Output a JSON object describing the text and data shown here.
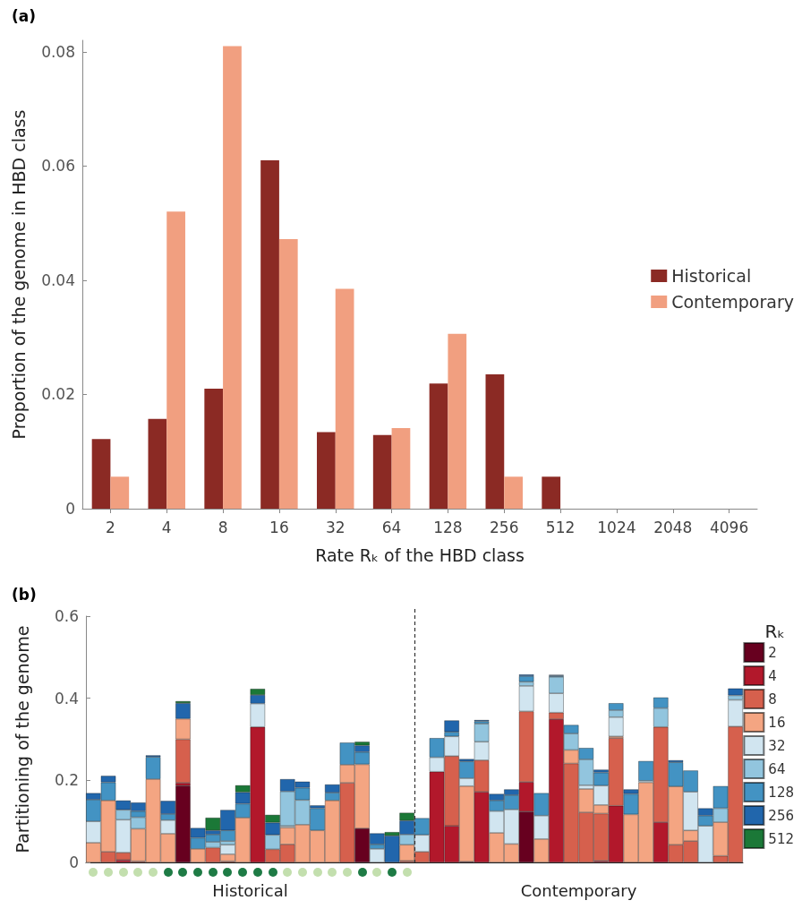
{
  "chart_data": [
    {
      "type": "bar",
      "title": "(a)",
      "xlabel": "Rate Rₖ of the HBD class",
      "ylabel": "Proportion of the genome in HBD class",
      "categories": [
        "2",
        "4",
        "8",
        "16",
        "32",
        "64",
        "128",
        "256",
        "512",
        "1024",
        "2048",
        "4096"
      ],
      "series": [
        {
          "name": "Historical",
          "color": "#8b2a24",
          "values": [
            0.0122,
            0.0157,
            0.021,
            0.061,
            0.0134,
            0.0129,
            0.0219,
            0.0235,
            0.0056,
            0,
            0,
            0
          ]
        },
        {
          "name": "Contemporary",
          "color": "#f19f80",
          "values": [
            0.0056,
            0.052,
            0.081,
            0.0472,
            0.0385,
            0.0141,
            0.0306,
            0.0056,
            0,
            0,
            0,
            0
          ]
        }
      ],
      "ylim": [
        0,
        0.082
      ],
      "yticks": [
        0,
        0.02,
        0.04,
        0.06,
        0.08
      ],
      "grid": false,
      "legend": "right"
    },
    {
      "type": "bar",
      "title": "(b)",
      "ylabel": "Partitioning of the genome",
      "legend_title": "Rₖ",
      "stacked": true,
      "tick_labels": "y",
      "annotations": [
        "Historical",
        "Contemporary"
      ],
      "categories": [
        null,
        null,
        null,
        null,
        null,
        null,
        null,
        null,
        null,
        null,
        null,
        null,
        null,
        null,
        null,
        null,
        null,
        null,
        null,
        null,
        null,
        null,
        null,
        null,
        null,
        null,
        null,
        null,
        null,
        null,
        null,
        null,
        null,
        null,
        null,
        null,
        null,
        null,
        null,
        null,
        null,
        null,
        null,
        null
      ],
      "ylim": [
        0,
        0.6
      ],
      "yticks": [
        0,
        0.2,
        0.4,
        0.6
      ],
      "grid": false,
      "legend": "right",
      "series": [
        {
          "name": "2",
          "color": "#67001f",
          "values": [
            0,
            0,
            0,
            0,
            0,
            0,
            0.187,
            0,
            0,
            0,
            0,
            0,
            0,
            0,
            0,
            0,
            0,
            0,
            0.083,
            0,
            0,
            0,
            0,
            0,
            0,
            0,
            0,
            0,
            0,
            0.124,
            0,
            0,
            0,
            0,
            0,
            0,
            0,
            0,
            0,
            0,
            0,
            0,
            0,
            0
          ]
        },
        {
          "name": "4",
          "color": "#b2182b",
          "values": [
            0,
            0,
            0.006,
            0,
            0,
            0,
            0.007,
            0,
            0,
            0,
            0,
            0.33,
            0,
            0,
            0,
            0,
            0,
            0,
            0,
            0,
            0,
            0,
            0,
            0.221,
            0.089,
            0.002,
            0.172,
            0,
            0,
            0.072,
            0,
            0.349,
            0,
            0,
            0.004,
            0.138,
            0,
            0,
            0.098,
            0,
            0,
            0,
            0,
            0
          ]
        },
        {
          "name": "8",
          "color": "#d6604d",
          "values": [
            0,
            0.026,
            0.018,
            0.003,
            0,
            0,
            0.106,
            0,
            0.036,
            0.003,
            0,
            0,
            0.032,
            0.044,
            0,
            0,
            0,
            0.194,
            0,
            0,
            0,
            0.004,
            0.026,
            0,
            0.17,
            0,
            0.077,
            0,
            0,
            0.172,
            0,
            0.016,
            0.241,
            0.122,
            0.115,
            0.165,
            0,
            0,
            0.232,
            0.043,
            0.052,
            0,
            0.016,
            0.331
          ]
        },
        {
          "name": "16",
          "color": "#f4a582",
          "values": [
            0.048,
            0.125,
            0,
            0.079,
            0.203,
            0.07,
            0.05,
            0.033,
            0,
            0.017,
            0.109,
            0,
            0,
            0.041,
            0.092,
            0.078,
            0.151,
            0.044,
            0.156,
            0,
            0,
            0.039,
            0,
            0,
            0,
            0.184,
            0,
            0.072,
            0.045,
            0,
            0.057,
            0,
            0.033,
            0.057,
            0.021,
            0.004,
            0.117,
            0.195,
            0,
            0.142,
            0.026,
            0,
            0.082,
            0
          ]
        },
        {
          "name": "32",
          "color": "#d1e5f0",
          "values": [
            0.052,
            0,
            0.08,
            0,
            0,
            0.033,
            0,
            0,
            0,
            0.023,
            0,
            0.057,
            0,
            0.004,
            0,
            0,
            0,
            0,
            0,
            0.033,
            0,
            0,
            0.041,
            0.035,
            0.048,
            0.019,
            0.045,
            0.053,
            0.084,
            0.062,
            0.057,
            0.047,
            0,
            0.009,
            0.047,
            0.047,
            0,
            0.004,
            0,
            0,
            0.094,
            0.089,
            0,
            0.065
          ]
        },
        {
          "name": "64",
          "color": "#92c5de",
          "values": [
            0,
            0,
            0.024,
            0.028,
            0,
            0,
            0,
            0,
            0.014,
            0.009,
            0,
            0,
            0.035,
            0.084,
            0.06,
            0,
            0,
            0,
            0,
            0,
            0,
            0.025,
            0,
            0,
            0,
            0,
            0.044,
            0,
            0,
            0.01,
            0,
            0.04,
            0.04,
            0.063,
            0,
            0.017,
            0,
            0,
            0.046,
            0,
            0,
            0,
            0.034,
            0.011
          ]
        },
        {
          "name": "128",
          "color": "#4393c3",
          "values": [
            0.053,
            0.044,
            0,
            0.015,
            0.054,
            0.015,
            0,
            0.027,
            0.018,
            0.026,
            0.034,
            0,
            0,
            0,
            0.03,
            0.054,
            0.019,
            0.054,
            0.03,
            0.011,
            0,
            0,
            0.041,
            0.047,
            0.011,
            0.041,
            0.006,
            0.026,
            0.035,
            0.014,
            0.055,
            0.003,
            0.021,
            0.028,
            0.032,
            0.017,
            0.05,
            0.048,
            0.026,
            0.059,
            0.052,
            0.025,
            0.054,
            0
          ]
        },
        {
          "name": "256",
          "color": "#2166ac",
          "values": [
            0.016,
            0.016,
            0.023,
            0.021,
            0.004,
            0.032,
            0.038,
            0.024,
            0.01,
            0.05,
            0.028,
            0.021,
            0.03,
            0.03,
            0.015,
            0.007,
            0.02,
            0,
            0.016,
            0.027,
            0.065,
            0.034,
            0,
            0,
            0.028,
            0.006,
            0.003,
            0.016,
            0.014,
            0.004,
            0,
            0.002,
            0,
            0,
            0.007,
            0,
            0.011,
            0,
            0,
            0.005,
            0,
            0.018,
            0,
            0.017
          ]
        },
        {
          "name": "512",
          "color": "#1b7837",
          "values": [
            0,
            0,
            0,
            0,
            0,
            0,
            0.005,
            0,
            0.031,
            0,
            0.017,
            0.015,
            0.019,
            0,
            0,
            0,
            0,
            0,
            0.009,
            0,
            0.009,
            0.019,
            0,
            0,
            0,
            0,
            0,
            0,
            0,
            0,
            0,
            0,
            0,
            0,
            0,
            0,
            0,
            0,
            0,
            0,
            0,
            0,
            0,
            0
          ]
        }
      ]
    }
  ]
}
